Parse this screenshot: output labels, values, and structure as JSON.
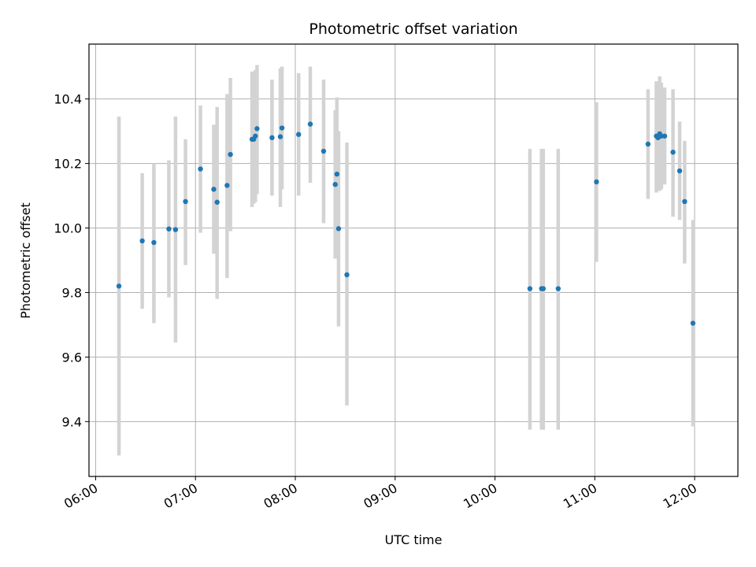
{
  "chart_data": {
    "type": "scatter",
    "title": "Photometric offset variation",
    "xlabel": "UTC time",
    "ylabel": "Photometric offset",
    "x_ticks": [
      "06:00",
      "07:00",
      "08:00",
      "09:00",
      "10:00",
      "11:00",
      "12:00"
    ],
    "y_ticks": [
      "9.4",
      "9.6",
      "9.8",
      "10.0",
      "10.2",
      "10.4"
    ],
    "xlim": [
      "05:56",
      "12:26"
    ],
    "ylim": [
      9.23,
      10.57
    ],
    "grid": true,
    "colors": {
      "point": "#1f77b4",
      "error_bar": "#d3d3d3"
    },
    "points": [
      {
        "x": "06:14",
        "y": 9.82,
        "low": 9.295,
        "high": 10.345
      },
      {
        "x": "06:28",
        "y": 9.96,
        "low": 9.75,
        "high": 10.17
      },
      {
        "x": "06:35",
        "y": 9.955,
        "low": 9.705,
        "high": 10.2
      },
      {
        "x": "06:44",
        "y": 9.997,
        "low": 9.785,
        "high": 10.21
      },
      {
        "x": "06:48",
        "y": 9.995,
        "low": 9.645,
        "high": 10.345
      },
      {
        "x": "06:54",
        "y": 10.082,
        "low": 9.885,
        "high": 10.275
      },
      {
        "x": "07:03",
        "y": 10.183,
        "low": 9.985,
        "high": 10.38
      },
      {
        "x": "07:11",
        "y": 10.12,
        "low": 9.92,
        "high": 10.32
      },
      {
        "x": "07:13",
        "y": 10.08,
        "low": 9.78,
        "high": 10.375
      },
      {
        "x": "07:19",
        "y": 10.132,
        "low": 9.845,
        "high": 10.415
      },
      {
        "x": "07:21",
        "y": 10.228,
        "low": 9.99,
        "high": 10.465
      },
      {
        "x": "07:34",
        "y": 10.275,
        "low": 10.065,
        "high": 10.485
      },
      {
        "x": "07:35",
        "y": 10.275,
        "low": 10.075,
        "high": 10.485
      },
      {
        "x": "07:36",
        "y": 10.285,
        "low": 10.08,
        "high": 10.49
      },
      {
        "x": "07:37",
        "y": 10.308,
        "low": 10.105,
        "high": 10.505
      },
      {
        "x": "07:46",
        "y": 10.28,
        "low": 10.1,
        "high": 10.46
      },
      {
        "x": "07:51",
        "y": 10.283,
        "low": 10.065,
        "high": 10.495
      },
      {
        "x": "07:52",
        "y": 10.31,
        "low": 10.12,
        "high": 10.5
      },
      {
        "x": "08:02",
        "y": 10.29,
        "low": 10.1,
        "high": 10.48
      },
      {
        "x": "08:09",
        "y": 10.322,
        "low": 10.14,
        "high": 10.5
      },
      {
        "x": "08:17",
        "y": 10.238,
        "low": 10.015,
        "high": 10.46
      },
      {
        "x": "08:24",
        "y": 10.135,
        "low": 9.905,
        "high": 10.365
      },
      {
        "x": "08:25",
        "y": 10.167,
        "low": 9.925,
        "high": 10.405
      },
      {
        "x": "08:26",
        "y": 9.998,
        "low": 9.695,
        "high": 10.3
      },
      {
        "x": "08:31",
        "y": 9.855,
        "low": 9.45,
        "high": 10.265
      },
      {
        "x": "10:21",
        "y": 9.812,
        "low": 9.375,
        "high": 10.245
      },
      {
        "x": "10:28",
        "y": 9.812,
        "low": 9.375,
        "high": 10.245
      },
      {
        "x": "10:29",
        "y": 9.812,
        "low": 9.375,
        "high": 10.245
      },
      {
        "x": "10:38",
        "y": 9.812,
        "low": 9.375,
        "high": 10.245
      },
      {
        "x": "11:01",
        "y": 10.143,
        "low": 9.895,
        "high": 10.39
      },
      {
        "x": "11:32",
        "y": 10.26,
        "low": 10.09,
        "high": 10.43
      },
      {
        "x": "11:37",
        "y": 10.285,
        "low": 10.11,
        "high": 10.455
      },
      {
        "x": "11:38",
        "y": 10.28,
        "low": 10.115,
        "high": 10.445
      },
      {
        "x": "11:39",
        "y": 10.292,
        "low": 10.115,
        "high": 10.47
      },
      {
        "x": "11:40",
        "y": 10.285,
        "low": 10.12,
        "high": 10.45
      },
      {
        "x": "11:42",
        "y": 10.285,
        "low": 10.135,
        "high": 10.435
      },
      {
        "x": "11:47",
        "y": 10.235,
        "low": 10.035,
        "high": 10.43
      },
      {
        "x": "11:51",
        "y": 10.177,
        "low": 10.025,
        "high": 10.33
      },
      {
        "x": "11:54",
        "y": 10.082,
        "low": 9.89,
        "high": 10.27
      },
      {
        "x": "11:59",
        "y": 9.705,
        "low": 9.385,
        "high": 10.025
      }
    ]
  }
}
